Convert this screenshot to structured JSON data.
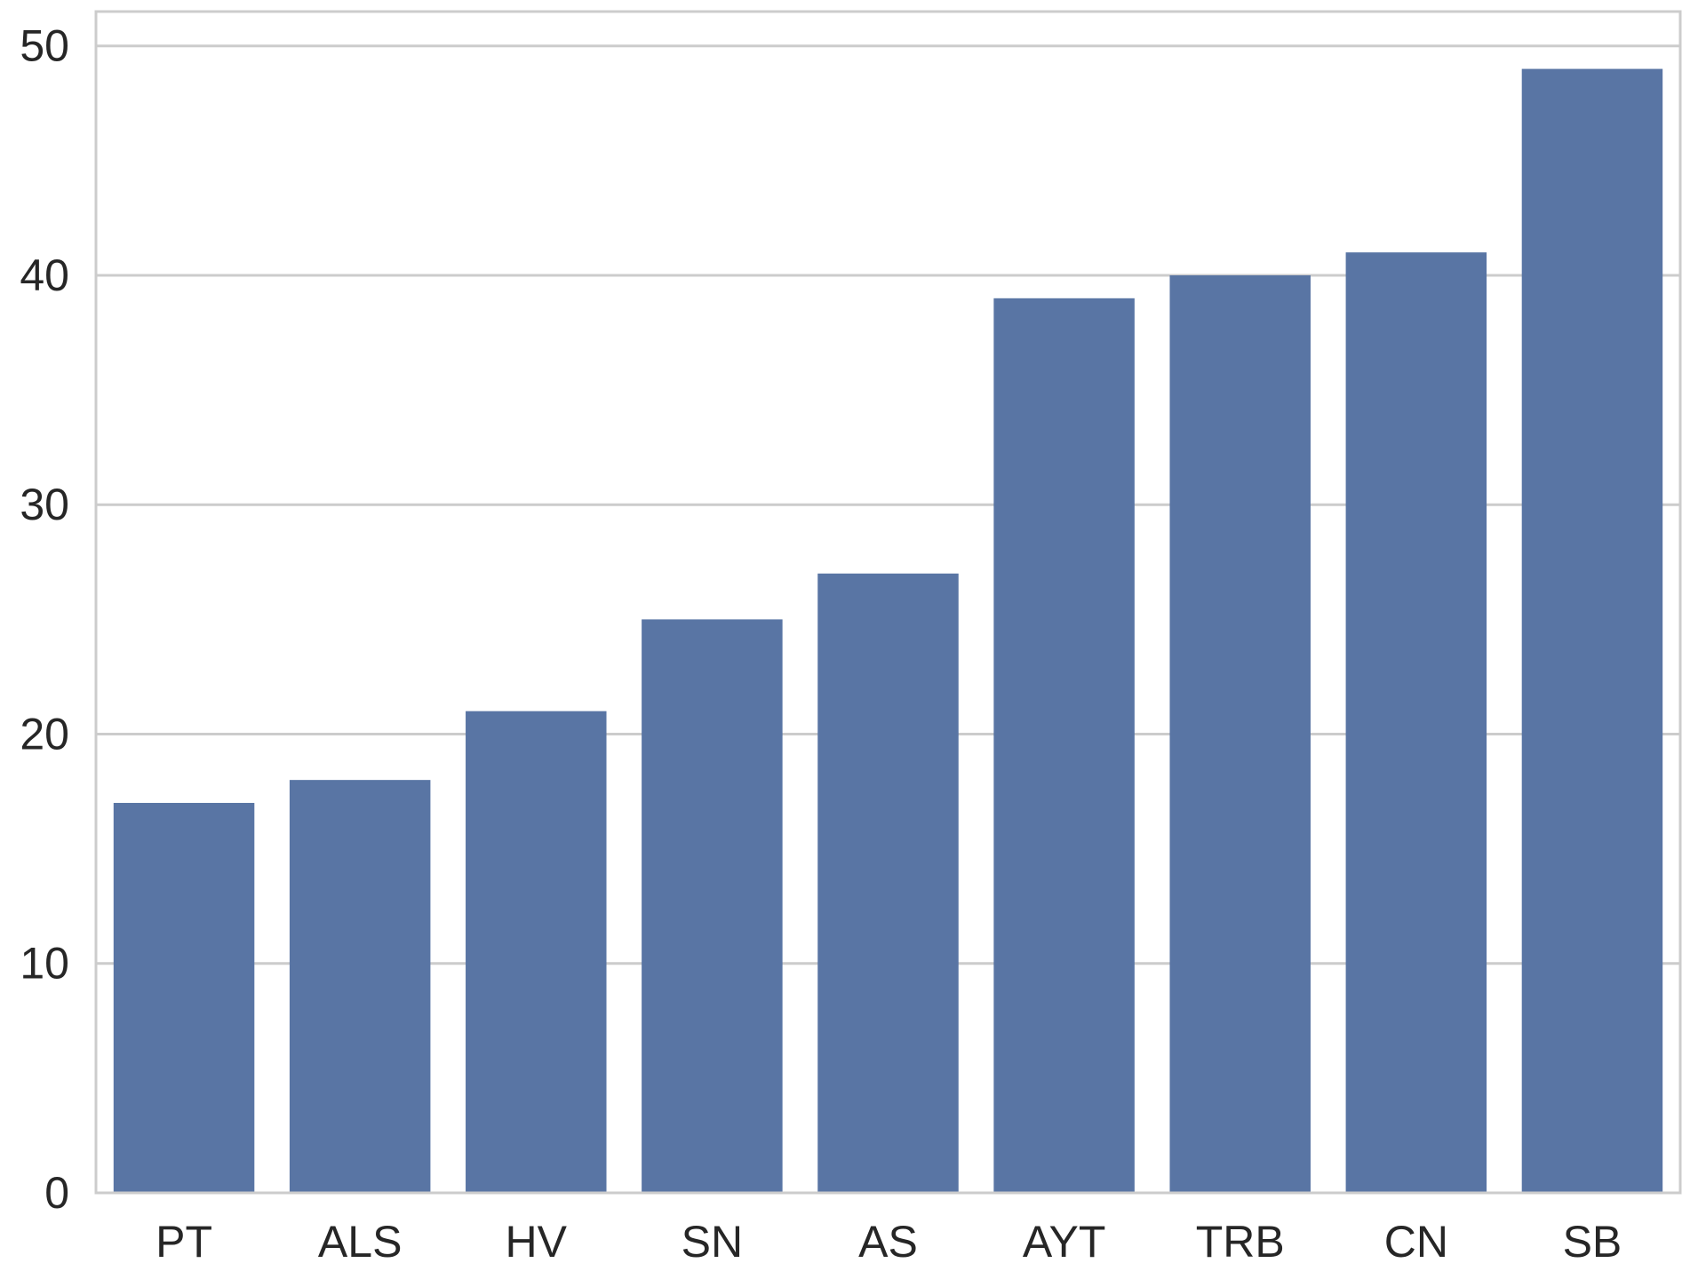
{
  "chart_data": {
    "type": "bar",
    "categories": [
      "PT",
      "ALS",
      "HV",
      "SN",
      "AS",
      "AYT",
      "TRB",
      "CN",
      "SB"
    ],
    "values": [
      17,
      18,
      21,
      25,
      27,
      39,
      40,
      41,
      49
    ],
    "title": "",
    "xlabel": "",
    "ylabel": "",
    "ylim": [
      0,
      51.5
    ],
    "yticks": [
      0,
      10,
      20,
      30,
      40,
      50
    ],
    "grid": "horizontal",
    "bar_color": "#5975a4",
    "grid_color": "#cccccc",
    "axis_color": "#cccccc",
    "text_color": "#262626"
  }
}
